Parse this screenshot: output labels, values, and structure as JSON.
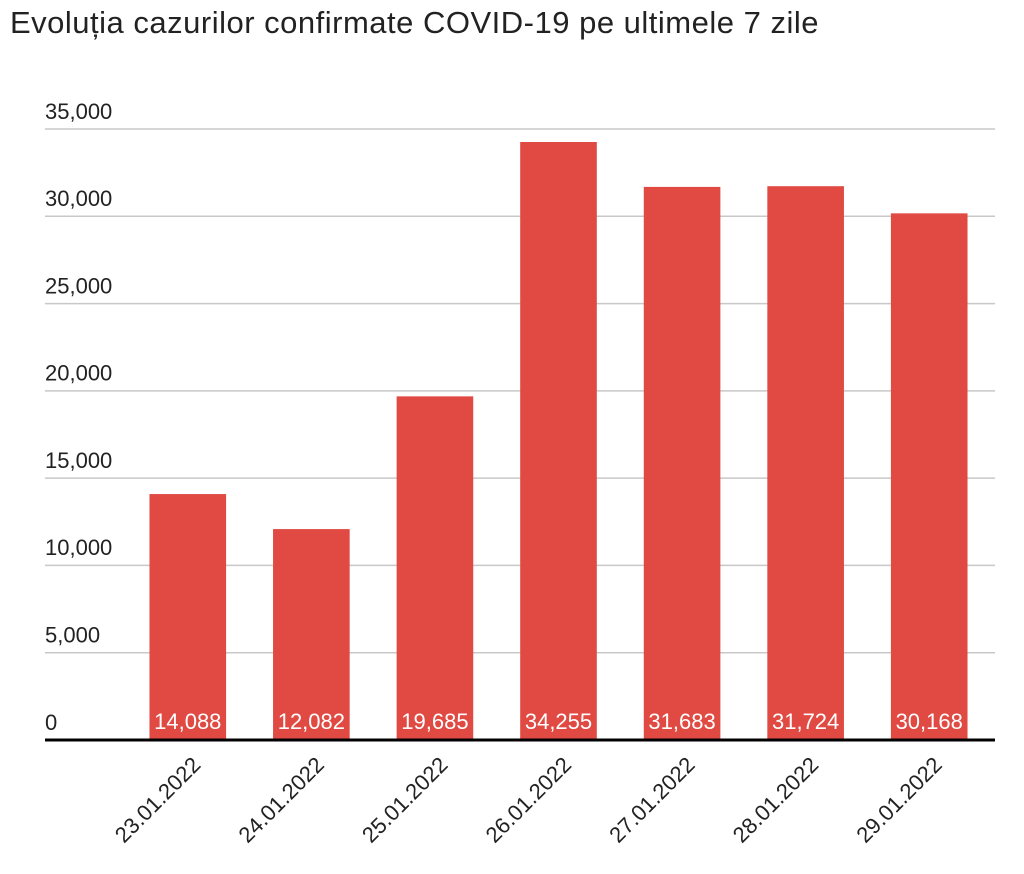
{
  "chart_data": {
    "type": "bar",
    "title": "Evoluția cazurilor confirmate COVID-19 pe ultimele 7 zile",
    "categories": [
      "23.01.2022",
      "24.01.2022",
      "25.01.2022",
      "26.01.2022",
      "27.01.2022",
      "28.01.2022",
      "29.01.2022"
    ],
    "values": [
      14088,
      12082,
      19685,
      34255,
      31683,
      31724,
      30168
    ],
    "value_labels": [
      "14,088",
      "12,082",
      "19,685",
      "34,255",
      "31,683",
      "31,724",
      "30,168"
    ],
    "color": "#e04a43",
    "ylim": [
      0,
      35000
    ],
    "yticks": [
      0,
      {
        "value": 5000,
        "label": "5,000"
      },
      {
        "value": 10000,
        "label": "10,000"
      },
      {
        "value": 15000,
        "label": "15,000"
      },
      {
        "value": 20000,
        "label": "20,000"
      },
      {
        "value": 25000,
        "label": "25,000"
      },
      {
        "value": 30000,
        "label": "30,000"
      },
      {
        "value": 35000,
        "label": "35,000"
      }
    ],
    "grid": true
  }
}
